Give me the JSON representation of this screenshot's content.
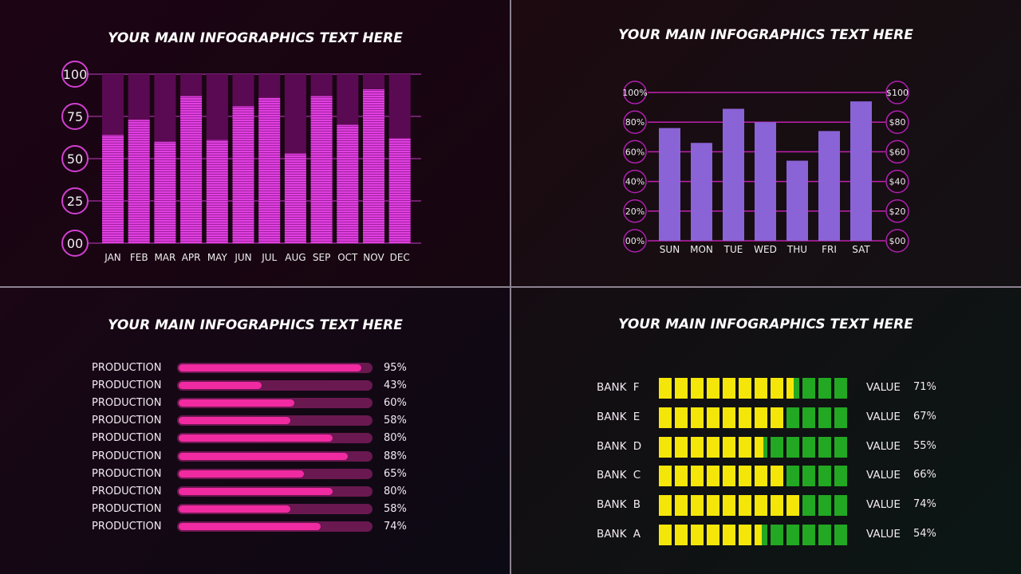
{
  "panels": {
    "monthly": {
      "title": "YOUR MAIN INFOGRAPHICS TEXT HERE"
    },
    "weekly": {
      "title": "YOUR MAIN INFOGRAPHICS TEXT HERE"
    },
    "production": {
      "title": "YOUR MAIN INFOGRAPHICS TEXT HERE"
    },
    "banks": {
      "title": "YOUR MAIN INFOGRAPHICS TEXT HERE"
    }
  },
  "colors": {
    "magenta": "#e040e0",
    "purple": "#8a63d6",
    "pink": "#f02aa0",
    "yellow": "#f5e60a",
    "green": "#22a822"
  },
  "chart_data": [
    {
      "type": "bar",
      "title": "YOUR MAIN INFOGRAPHICS TEXT HERE",
      "categories": [
        "JAN",
        "FEB",
        "MAR",
        "APR",
        "MAY",
        "JUN",
        "JUL",
        "AUG",
        "SEP",
        "OCT",
        "NOV",
        "DEC"
      ],
      "values": [
        64,
        73,
        60,
        87,
        61,
        81,
        86,
        53,
        87,
        70,
        91,
        62
      ],
      "yticks": [
        "00",
        "25",
        "50",
        "75",
        "100"
      ],
      "ylim": [
        0,
        100
      ],
      "grid": true
    },
    {
      "type": "bar",
      "title": "YOUR MAIN INFOGRAPHICS TEXT HERE",
      "categories": [
        "SUN",
        "MON",
        "TUE",
        "WED",
        "THU",
        "FRI",
        "SAT"
      ],
      "values": [
        76,
        66,
        89,
        80,
        54,
        74,
        94
      ],
      "yticks_left": [
        "00%",
        "20%",
        "40%",
        "60%",
        "80%",
        "100%"
      ],
      "yticks_right": [
        "$00",
        "$20",
        "$40",
        "$60",
        "$80",
        "$100"
      ],
      "ylim": [
        0,
        100
      ],
      "grid": true
    },
    {
      "type": "bar",
      "orientation": "horizontal",
      "title": "YOUR MAIN INFOGRAPHICS TEXT HERE",
      "categories": [
        "PRODUCTION",
        "PRODUCTION",
        "PRODUCTION",
        "PRODUCTION",
        "PRODUCTION",
        "PRODUCTION",
        "PRODUCTION",
        "PRODUCTION",
        "PRODUCTION",
        "PRODUCTION"
      ],
      "values": [
        95,
        43,
        60,
        58,
        80,
        88,
        65,
        80,
        58,
        74
      ],
      "labels": [
        "95%",
        "43%",
        "60%",
        "58%",
        "80%",
        "88%",
        "65%",
        "80%",
        "58%",
        "74%"
      ]
    },
    {
      "type": "bar",
      "orientation": "horizontal",
      "title": "YOUR MAIN INFOGRAPHICS TEXT HERE",
      "categories": [
        "BANK F",
        "BANK E",
        "BANK D",
        "BANK C",
        "BANK B",
        "BANK A"
      ],
      "values": [
        71,
        67,
        55,
        66,
        74,
        54
      ],
      "value_label": "VALUE",
      "labels": [
        "71%",
        "67%",
        "55%",
        "66%",
        "74%",
        "54%"
      ]
    }
  ]
}
